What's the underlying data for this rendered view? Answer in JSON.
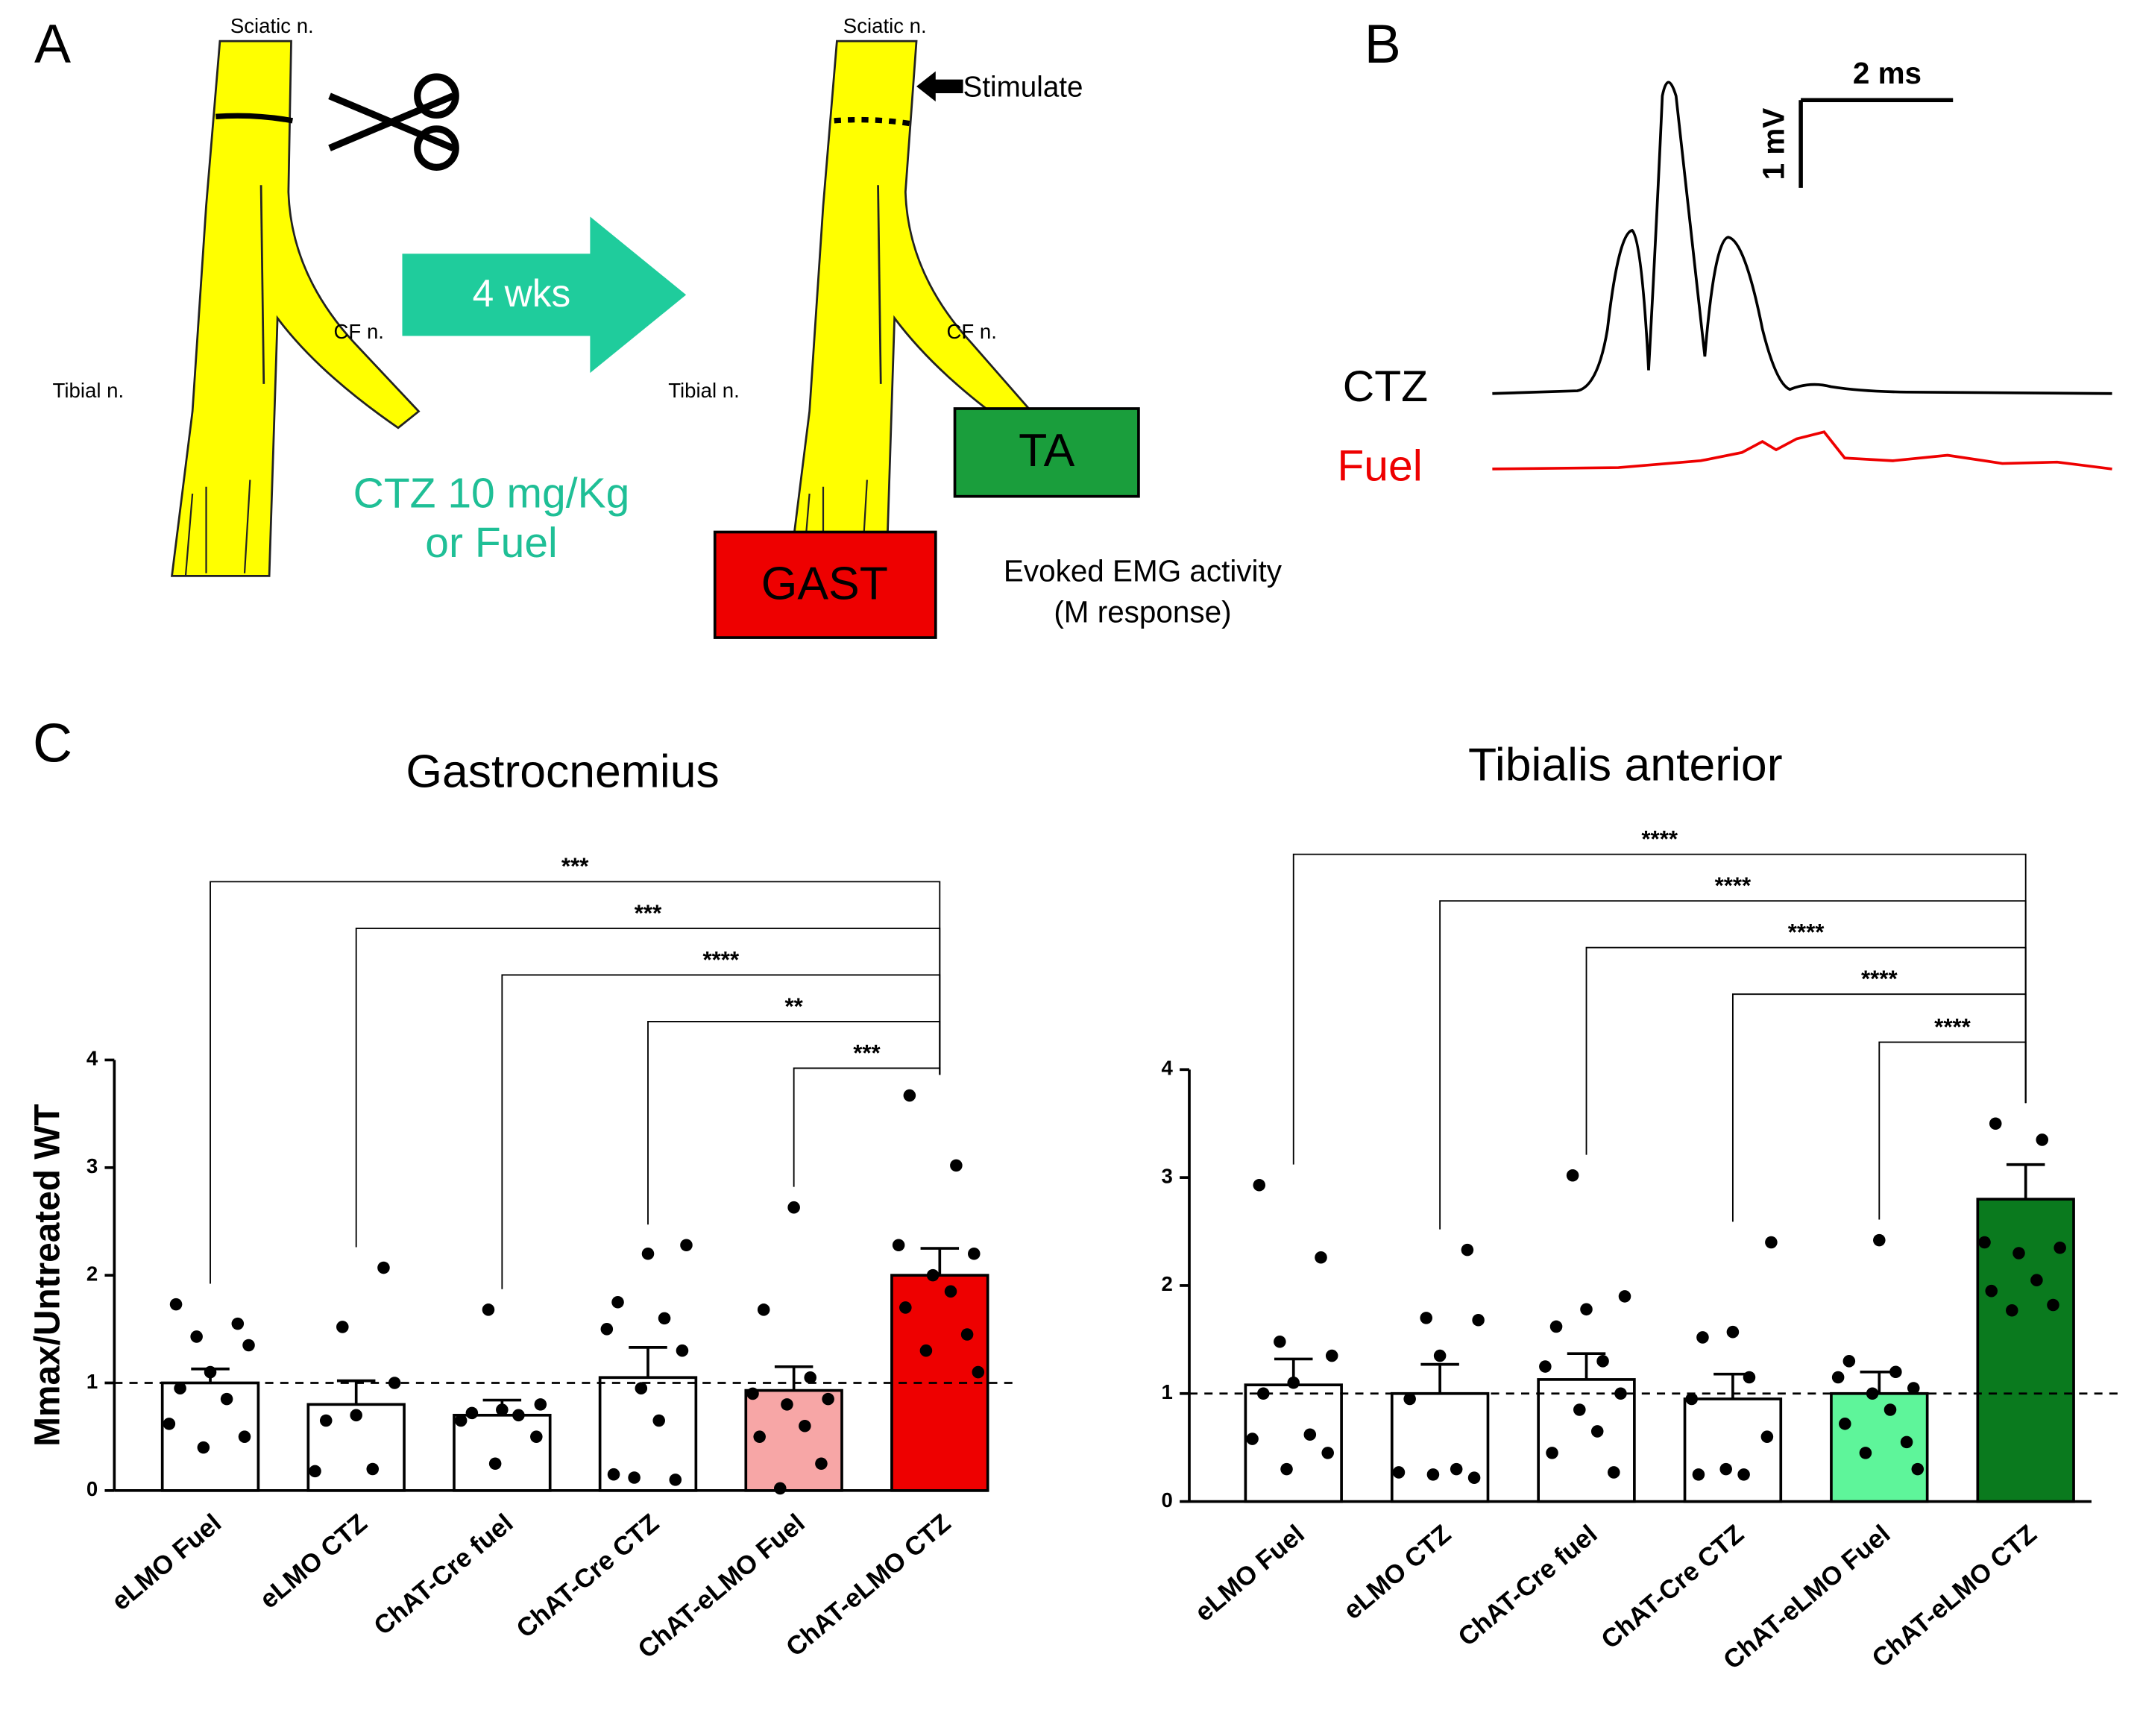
{
  "panel_a": {
    "letter": "A",
    "sciatic_left": "Sciatic n.",
    "sciatic_right": "Sciatic n.",
    "tibial_left": "Tibial n.",
    "tibial_right": "Tibial n.",
    "cf_left": "CF n.",
    "cf_right": "CF n.",
    "arrow_label": "4 wks",
    "treatment_line1": "CTZ 10 mg/Kg",
    "treatment_line2": "or Fuel",
    "stimulate": "Stimulate",
    "ta_box": "TA",
    "gast_box": "GAST",
    "emg_line1": "Evoked EMG activity",
    "emg_line2": "(M response)"
  },
  "panel_b": {
    "letter": "B",
    "time_scale": "2 ms",
    "volt_scale": "1 mV",
    "trace_ctz": "CTZ",
    "trace_fuel": "Fuel"
  },
  "panel_c": {
    "letter": "C"
  },
  "chart_data": [
    {
      "type": "bar",
      "title": "Gastrocnemius",
      "ylabel": "Mmax/Untreated  WT",
      "categories": [
        "eLMO Fuel",
        "eLMO CTZ",
        "ChAT-Cre fuel",
        "ChAT-Cre CTZ",
        "ChAT-eLMO Fuel",
        "ChAT-eLMO CTZ"
      ],
      "values": [
        1.0,
        0.8,
        0.7,
        1.05,
        0.93,
        2.0
      ],
      "errors": [
        0.13,
        0.22,
        0.14,
        0.28,
        0.22,
        0.25
      ],
      "colors": [
        "#ffffff",
        "#ffffff",
        "#ffffff",
        "#ffffff",
        "#f7a6a6",
        "#ee0000"
      ],
      "points": [
        [
          1.73,
          1.55,
          1.43,
          1.35,
          1.1,
          0.95,
          0.85,
          0.62,
          0.5,
          0.4
        ],
        [
          2.07,
          1.52,
          1.0,
          0.7,
          0.65,
          0.2,
          0.18
        ],
        [
          1.68,
          0.8,
          0.75,
          0.72,
          0.7,
          0.65,
          0.5,
          0.25
        ],
        [
          2.28,
          2.2,
          1.75,
          1.6,
          1.5,
          1.3,
          0.95,
          0.65,
          0.15,
          0.1,
          0.12
        ],
        [
          2.63,
          1.68,
          1.05,
          0.9,
          0.85,
          0.8,
          0.6,
          0.5,
          0.25,
          0.02
        ],
        [
          3.67,
          3.02,
          2.28,
          2.2,
          2.0,
          1.85,
          1.7,
          1.45,
          1.3,
          1.1
        ]
      ],
      "ylim": [
        0,
        4
      ],
      "yticks": [
        0,
        1,
        2,
        3,
        4
      ],
      "ref_line": 1,
      "comparisons": [
        {
          "from": 0,
          "to": 5,
          "label": "***"
        },
        {
          "from": 1,
          "to": 5,
          "label": "***"
        },
        {
          "from": 2,
          "to": 5,
          "label": "****"
        },
        {
          "from": 3,
          "to": 5,
          "label": "**"
        },
        {
          "from": 4,
          "to": 5,
          "label": "***"
        }
      ]
    },
    {
      "type": "bar",
      "title": "Tibialis anterior",
      "categories": [
        "eLMO Fuel",
        "eLMO CTZ",
        "ChAT-Cre fuel",
        "ChAT-Cre CTZ",
        "ChAT-eLMO Fuel",
        "ChAT-eLMO CTZ"
      ],
      "values": [
        1.08,
        1.0,
        1.13,
        0.95,
        1.0,
        2.8
      ],
      "errors": [
        0.24,
        0.27,
        0.24,
        0.23,
        0.2,
        0.32
      ],
      "colors": [
        "#ffffff",
        "#ffffff",
        "#ffffff",
        "#ffffff",
        "#5ef59a",
        "#0a7a1e"
      ],
      "points": [
        [
          2.93,
          2.26,
          1.48,
          1.35,
          1.1,
          1.0,
          0.62,
          0.58,
          0.45,
          0.3
        ],
        [
          2.33,
          1.7,
          1.68,
          1.35,
          0.95,
          0.3,
          0.27,
          0.22,
          0.25
        ],
        [
          3.02,
          1.9,
          1.78,
          1.62,
          1.3,
          1.25,
          1.0,
          0.85,
          0.65,
          0.45,
          0.27
        ],
        [
          2.4,
          1.57,
          1.52,
          1.15,
          0.95,
          0.6,
          0.3,
          0.25,
          0.25
        ],
        [
          2.42,
          1.3,
          1.2,
          1.15,
          1.05,
          1.0,
          0.85,
          0.72,
          0.55,
          0.45,
          0.3
        ],
        [
          3.5,
          3.35,
          2.4,
          2.35,
          2.3,
          2.05,
          1.95,
          1.82,
          1.77
        ]
      ],
      "ylim": [
        0,
        4
      ],
      "yticks": [
        0,
        1,
        2,
        3,
        4
      ],
      "ref_line": 1,
      "comparisons": [
        {
          "from": 0,
          "to": 5,
          "label": "****"
        },
        {
          "from": 1,
          "to": 5,
          "label": "****"
        },
        {
          "from": 2,
          "to": 5,
          "label": "****"
        },
        {
          "from": 3,
          "to": 5,
          "label": "****"
        },
        {
          "from": 4,
          "to": 5,
          "label": "****"
        }
      ]
    }
  ]
}
